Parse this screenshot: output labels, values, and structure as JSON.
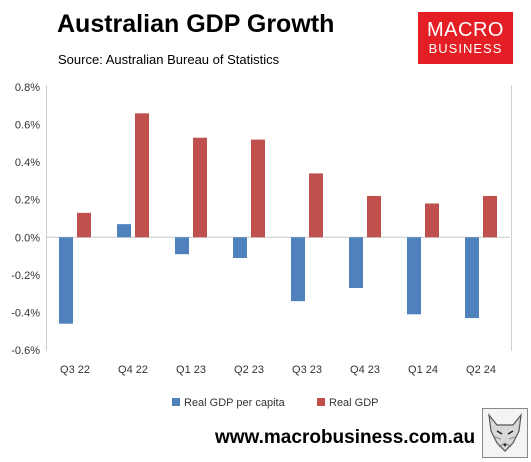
{
  "header": {
    "title": "Australian GDP Growth",
    "source": "Source: Australian Bureau of Statistics"
  },
  "logo": {
    "line1": "MACRO",
    "line2": "BUSINESS",
    "color": "#e31e24"
  },
  "footer": {
    "url": "www.macrobusiness.com.au",
    "wolf_icon": "wolf-icon"
  },
  "chart_data": {
    "type": "bar",
    "title": "Australian GDP Growth",
    "categories": [
      "Q3 22",
      "Q4 22",
      "Q1 23",
      "Q2 23",
      "Q3 23",
      "Q4 23",
      "Q1 24",
      "Q2 24"
    ],
    "series": [
      {
        "name": "Real GDP per capita",
        "color": "#4f81bd",
        "values": [
          -0.46,
          0.07,
          -0.09,
          -0.11,
          -0.34,
          -0.27,
          -0.41,
          -0.43
        ]
      },
      {
        "name": "Real GDP",
        "color": "#c0504d",
        "values": [
          0.13,
          0.66,
          0.53,
          0.52,
          0.34,
          0.22,
          0.18,
          0.22
        ]
      }
    ],
    "ylim": [
      -0.6,
      0.8
    ],
    "yticks": [
      "-0.6%",
      "-0.4%",
      "-0.2%",
      "0.0%",
      "0.2%",
      "0.4%",
      "0.6%",
      "0.8%"
    ],
    "ytick_values": [
      -0.6,
      -0.4,
      -0.2,
      0.0,
      0.2,
      0.4,
      0.6,
      0.8
    ],
    "grid": false,
    "legend_position": "bottom"
  }
}
